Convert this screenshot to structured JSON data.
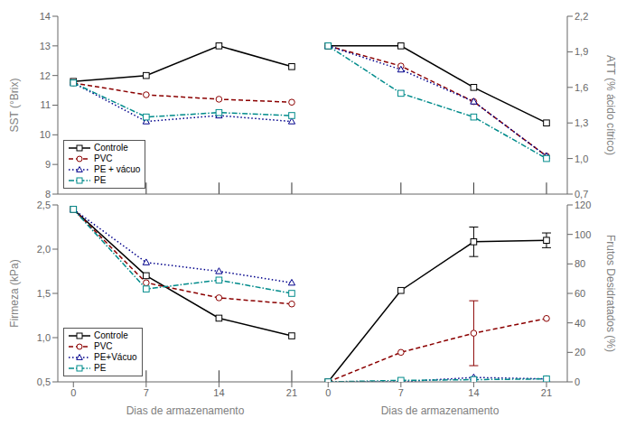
{
  "chart_data": [
    {
      "type": "line",
      "x": [
        0,
        7,
        14,
        21
      ],
      "xlim": [
        -1.5,
        23
      ],
      "xticks": [
        0,
        7,
        14,
        21
      ],
      "ylim": [
        8,
        14
      ],
      "yticks": [
        8,
        9,
        10,
        11,
        12,
        13,
        14
      ],
      "ylabel": "SST (°Brix)",
      "tick_labels": "y",
      "legend": "lower left",
      "vlines": [
        7,
        14,
        21
      ],
      "series": [
        {
          "name": "Controle",
          "color": "#000000",
          "line_style": "solid",
          "marker": "square",
          "values": [
            11.8,
            12.0,
            13.0,
            12.3
          ]
        },
        {
          "name": "PVC",
          "color": "#8B0000",
          "line_style": "dashed",
          "marker": "circle",
          "values": [
            11.75,
            11.35,
            11.2,
            11.1
          ]
        },
        {
          "name": "PE + vácuo",
          "color": "#00008B",
          "line_style": "dotted",
          "marker": "triangle",
          "values": [
            11.75,
            10.45,
            10.65,
            10.45
          ]
        },
        {
          "name": "PE",
          "color": "#008B8B",
          "line_style": "dashdot",
          "marker": "square",
          "values": [
            11.75,
            10.6,
            10.75,
            10.65
          ]
        }
      ]
    },
    {
      "type": "line",
      "x": [
        0,
        7,
        14,
        21
      ],
      "xlim": [
        -1.5,
        23
      ],
      "xticks": [
        0,
        7,
        14,
        21
      ],
      "ylim": [
        0.7,
        2.2
      ],
      "yticks": [
        {
          "value": 0.7,
          "label": "0,7"
        },
        {
          "value": 1.0,
          "label": "1,0"
        },
        {
          "value": 1.3,
          "label": "1,3"
        },
        {
          "value": 1.6,
          "label": "1,6"
        },
        {
          "value": 1.9,
          "label": "1,9"
        },
        {
          "value": 2.2,
          "label": "2,2"
        }
      ],
      "ylabel": "ATT (% ácido cítrico)",
      "tick_labels": "y",
      "vlines": [
        7,
        14,
        21
      ],
      "series": [
        {
          "name": "Controle",
          "color": "#000000",
          "line_style": "solid",
          "marker": "square",
          "values": [
            1.95,
            1.95,
            1.6,
            1.3
          ]
        },
        {
          "name": "PVC",
          "color": "#8B0000",
          "line_style": "dashed",
          "marker": "circle",
          "values": [
            1.95,
            1.78,
            1.48,
            1.02
          ]
        },
        {
          "name": "PE + vácuo",
          "color": "#00008B",
          "line_style": "dotted",
          "marker": "triangle",
          "values": [
            1.95,
            1.75,
            1.48,
            1.02
          ]
        },
        {
          "name": "PE",
          "color": "#008B8B",
          "line_style": "dashdot",
          "marker": "square",
          "values": [
            1.95,
            1.55,
            1.35,
            1.0
          ]
        }
      ]
    },
    {
      "type": "line",
      "x": [
        0,
        7,
        14,
        21
      ],
      "xlim": [
        -1.5,
        23
      ],
      "xticks": [
        0,
        7,
        14,
        21
      ],
      "ylim": [
        0.5,
        2.5
      ],
      "yticks": [
        {
          "value": 0.5,
          "label": "0,5"
        },
        {
          "value": 1.0,
          "label": "1,0"
        },
        {
          "value": 1.5,
          "label": "1,5"
        },
        {
          "value": 2.0,
          "label": "2,0"
        },
        {
          "value": 2.5,
          "label": "2,5"
        }
      ],
      "xlabel": "Dias de armazenamento",
      "ylabel": "Firmeza (kPa)",
      "legend": "lower left",
      "vlines": [
        7,
        14,
        21
      ],
      "series": [
        {
          "name": "Controle",
          "color": "#000000",
          "line_style": "solid",
          "marker": "square",
          "values": [
            2.45,
            1.7,
            1.22,
            1.02
          ]
        },
        {
          "name": "PVC",
          "color": "#8B0000",
          "line_style": "dashed",
          "marker": "circle",
          "values": [
            2.45,
            1.62,
            1.45,
            1.38
          ]
        },
        {
          "name": "PE+Vácuo",
          "color": "#00008B",
          "line_style": "dotted",
          "marker": "triangle",
          "values": [
            2.45,
            1.85,
            1.75,
            1.62
          ]
        },
        {
          "name": "PE",
          "color": "#008B8B",
          "line_style": "dashdot",
          "marker": "square",
          "values": [
            2.45,
            1.55,
            1.65,
            1.5
          ]
        }
      ]
    },
    {
      "type": "line",
      "x": [
        0,
        7,
        14,
        21
      ],
      "xlim": [
        -1.5,
        23
      ],
      "xticks": [
        0,
        7,
        14,
        21
      ],
      "ylim": [
        0,
        120
      ],
      "yticks": [
        0,
        20,
        40,
        60,
        80,
        100,
        120
      ],
      "xlabel": "Dias de armazenamento",
      "ylabel": "Frutos Desidratados (%)",
      "series": [
        {
          "name": "Controle",
          "color": "#000000",
          "line_style": "solid",
          "marker": "square",
          "values": [
            0.0,
            62.0,
            95.0,
            96.0
          ],
          "errors": [
            0.0,
            0.0,
            10.0,
            5.0
          ]
        },
        {
          "name": "PVC",
          "color": "#8B0000",
          "line_style": "dashed",
          "marker": "circle",
          "values": [
            0.0,
            20.0,
            33.0,
            43.0
          ],
          "errors": [
            0.0,
            0.0,
            22.0,
            0.0
          ]
        },
        {
          "name": "PE+Vácuo",
          "color": "#00008B",
          "line_style": "dotted",
          "marker": "triangle",
          "values": [
            0.0,
            0.0,
            3.0,
            2.0
          ]
        },
        {
          "name": "PE",
          "color": "#008B8B",
          "line_style": "dashdot",
          "marker": "square",
          "values": [
            0.0,
            1.0,
            1.5,
            2.0
          ]
        }
      ]
    }
  ]
}
